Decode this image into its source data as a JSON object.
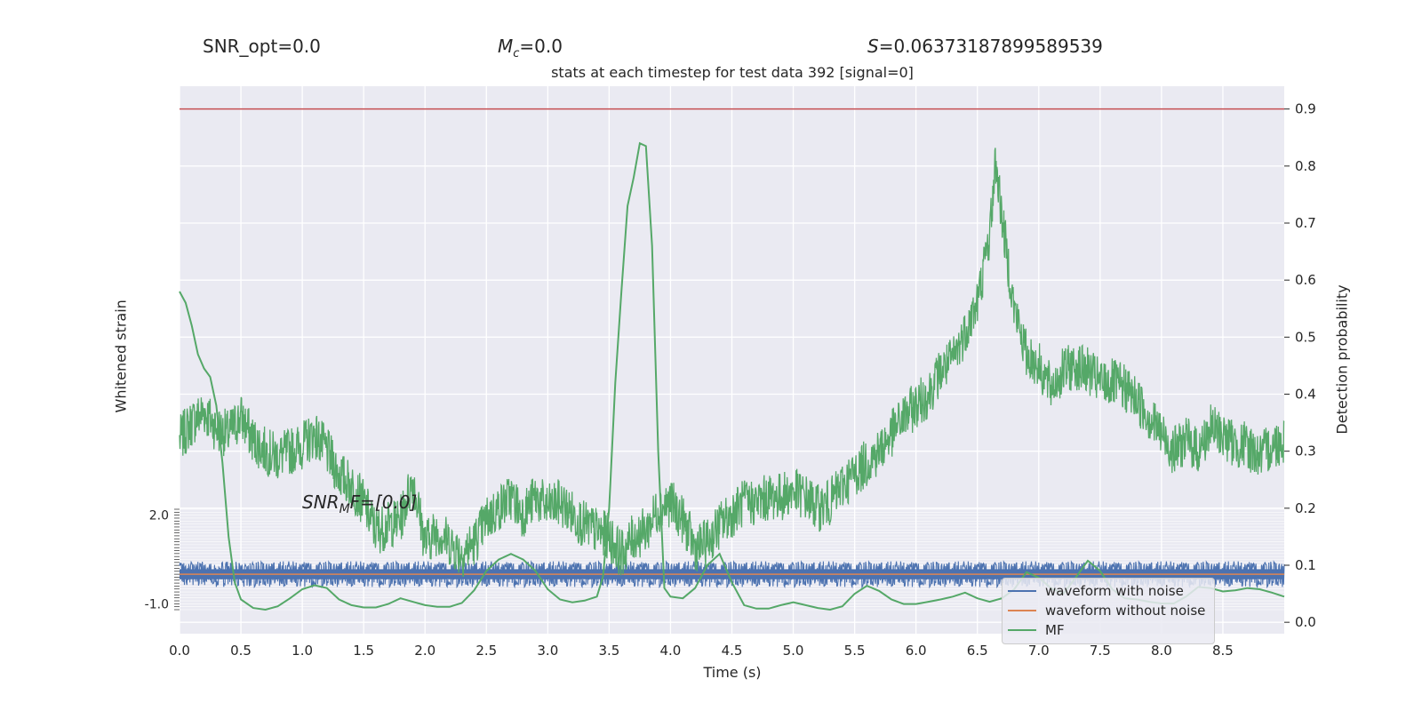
{
  "header": {
    "snr_opt": "SNR_opt=0.0",
    "mc_symbol": "M",
    "mc_sub": "c",
    "mc_value": "=0.0",
    "s_symbol": "S",
    "s_value": "=0.06373187899589539",
    "subtitle": "stats at each timestep for test data 392 [signal=0]"
  },
  "snr_mf": {
    "prefix": "SNR",
    "sub": "M",
    "suffix": "F=[0.0]"
  },
  "legend": [
    {
      "label": "waveform with noise",
      "color": "#4c72b0"
    },
    {
      "label": "waveform without noise",
      "color": "#dd8452"
    },
    {
      "label": "MF",
      "color": "#55a868"
    }
  ],
  "chart_data": [
    {
      "type": "line",
      "title": "stats at each timestep for test data 392 [signal=0]",
      "xlabel": "Time (s)",
      "ylabel": "Detection probability",
      "xlim": [
        0.0,
        9.0
      ],
      "ylim": [
        -0.02,
        0.94
      ],
      "x_ticks": [
        "0.0",
        "0.5",
        "1.0",
        "1.5",
        "2.0",
        "2.5",
        "3.0",
        "3.5",
        "4.0",
        "4.5",
        "5.0",
        "5.5",
        "6.0",
        "6.5",
        "7.0",
        "7.5",
        "8.0",
        "8.5"
      ],
      "y_ticks": [
        "0.0",
        "0.1",
        "0.2",
        "0.3",
        "0.4",
        "0.5",
        "0.6",
        "0.7",
        "0.8",
        "0.9"
      ],
      "grid": true,
      "threshold": {
        "y": 0.9,
        "color": "#c44e52"
      },
      "series": [
        {
          "name": "MF",
          "color": "#55a868",
          "smooth": [
            [
              0.0,
              0.58
            ],
            [
              0.05,
              0.56
            ],
            [
              0.1,
              0.52
            ],
            [
              0.15,
              0.47
            ],
            [
              0.2,
              0.445
            ],
            [
              0.25,
              0.43
            ],
            [
              0.3,
              0.38
            ],
            [
              0.35,
              0.28
            ],
            [
              0.4,
              0.15
            ],
            [
              0.45,
              0.07
            ],
            [
              0.5,
              0.04
            ],
            [
              0.6,
              0.025
            ],
            [
              0.7,
              0.022
            ],
            [
              0.8,
              0.028
            ],
            [
              0.9,
              0.042
            ],
            [
              1.0,
              0.058
            ],
            [
              1.1,
              0.065
            ],
            [
              1.2,
              0.06
            ],
            [
              1.3,
              0.04
            ],
            [
              1.4,
              0.03
            ],
            [
              1.5,
              0.026
            ],
            [
              1.6,
              0.026
            ],
            [
              1.7,
              0.032
            ],
            [
              1.8,
              0.042
            ],
            [
              1.9,
              0.036
            ],
            [
              2.0,
              0.03
            ],
            [
              2.1,
              0.027
            ],
            [
              2.2,
              0.027
            ],
            [
              2.3,
              0.034
            ],
            [
              2.4,
              0.056
            ],
            [
              2.5,
              0.09
            ],
            [
              2.6,
              0.11
            ],
            [
              2.7,
              0.12
            ],
            [
              2.8,
              0.11
            ],
            [
              2.9,
              0.09
            ],
            [
              3.0,
              0.058
            ],
            [
              3.1,
              0.04
            ],
            [
              3.2,
              0.035
            ],
            [
              3.3,
              0.038
            ],
            [
              3.4,
              0.045
            ],
            [
              3.45,
              0.08
            ],
            [
              3.5,
              0.2
            ],
            [
              3.55,
              0.42
            ],
            [
              3.6,
              0.58
            ],
            [
              3.65,
              0.73
            ],
            [
              3.7,
              0.78
            ],
            [
              3.75,
              0.84
            ],
            [
              3.8,
              0.835
            ],
            [
              3.85,
              0.66
            ],
            [
              3.9,
              0.3
            ],
            [
              3.95,
              0.06
            ],
            [
              4.0,
              0.045
            ],
            [
              4.1,
              0.042
            ],
            [
              4.2,
              0.06
            ],
            [
              4.3,
              0.1
            ],
            [
              4.4,
              0.12
            ],
            [
              4.5,
              0.07
            ],
            [
              4.6,
              0.03
            ],
            [
              4.7,
              0.024
            ],
            [
              4.8,
              0.024
            ],
            [
              4.9,
              0.03
            ],
            [
              5.0,
              0.035
            ],
            [
              5.1,
              0.03
            ],
            [
              5.2,
              0.025
            ],
            [
              5.3,
              0.022
            ],
            [
              5.4,
              0.028
            ],
            [
              5.5,
              0.05
            ],
            [
              5.6,
              0.064
            ],
            [
              5.7,
              0.055
            ],
            [
              5.8,
              0.04
            ],
            [
              5.9,
              0.032
            ],
            [
              6.0,
              0.032
            ],
            [
              6.1,
              0.036
            ],
            [
              6.2,
              0.04
            ],
            [
              6.3,
              0.045
            ],
            [
              6.4,
              0.052
            ],
            [
              6.5,
              0.042
            ],
            [
              6.6,
              0.036
            ],
            [
              6.7,
              0.042
            ],
            [
              6.8,
              0.058
            ],
            [
              6.9,
              0.088
            ],
            [
              7.0,
              0.078
            ],
            [
              7.1,
              0.06
            ],
            [
              7.2,
              0.05
            ],
            [
              7.3,
              0.078
            ],
            [
              7.4,
              0.108
            ],
            [
              7.5,
              0.09
            ],
            [
              7.6,
              0.058
            ],
            [
              7.7,
              0.042
            ],
            [
              7.8,
              0.04
            ],
            [
              7.9,
              0.036
            ],
            [
              8.0,
              0.033
            ],
            [
              8.1,
              0.033
            ],
            [
              8.2,
              0.045
            ],
            [
              8.3,
              0.062
            ],
            [
              8.4,
              0.06
            ],
            [
              8.5,
              0.054
            ],
            [
              8.6,
              0.056
            ],
            [
              8.7,
              0.06
            ],
            [
              8.8,
              0.058
            ],
            [
              8.9,
              0.052
            ],
            [
              9.0,
              0.045
            ]
          ],
          "noisy_envelope": [
            [
              0.0,
              0.32
            ],
            [
              0.1,
              0.35
            ],
            [
              0.2,
              0.37
            ],
            [
              0.3,
              0.34
            ],
            [
              0.4,
              0.33
            ],
            [
              0.5,
              0.36
            ],
            [
              0.6,
              0.32
            ],
            [
              0.7,
              0.3
            ],
            [
              0.8,
              0.29
            ],
            [
              0.9,
              0.3
            ],
            [
              1.0,
              0.31
            ],
            [
              1.1,
              0.33
            ],
            [
              1.2,
              0.3
            ],
            [
              1.3,
              0.26
            ],
            [
              1.4,
              0.24
            ],
            [
              1.5,
              0.21
            ],
            [
              1.6,
              0.16
            ],
            [
              1.7,
              0.17
            ],
            [
              1.8,
              0.18
            ],
            [
              1.9,
              0.25
            ],
            [
              2.0,
              0.14
            ],
            [
              2.1,
              0.16
            ],
            [
              2.2,
              0.14
            ],
            [
              2.3,
              0.12
            ],
            [
              2.4,
              0.14
            ],
            [
              2.5,
              0.18
            ],
            [
              2.6,
              0.2
            ],
            [
              2.7,
              0.22
            ],
            [
              2.8,
              0.19
            ],
            [
              2.9,
              0.22
            ],
            [
              3.0,
              0.2
            ],
            [
              3.1,
              0.21
            ],
            [
              3.2,
              0.19
            ],
            [
              3.3,
              0.17
            ],
            [
              3.4,
              0.16
            ],
            [
              3.5,
              0.15
            ],
            [
              3.6,
              0.12
            ],
            [
              3.7,
              0.15
            ],
            [
              3.8,
              0.16
            ],
            [
              3.9,
              0.2
            ],
            [
              4.0,
              0.21
            ],
            [
              4.1,
              0.18
            ],
            [
              4.2,
              0.13
            ],
            [
              4.3,
              0.14
            ],
            [
              4.4,
              0.17
            ],
            [
              4.5,
              0.19
            ],
            [
              4.6,
              0.21
            ],
            [
              4.7,
              0.21
            ],
            [
              4.8,
              0.22
            ],
            [
              4.9,
              0.22
            ],
            [
              5.0,
              0.23
            ],
            [
              5.1,
              0.22
            ],
            [
              5.2,
              0.2
            ],
            [
              5.3,
              0.21
            ],
            [
              5.4,
              0.24
            ],
            [
              5.5,
              0.26
            ],
            [
              5.6,
              0.28
            ],
            [
              5.7,
              0.3
            ],
            [
              5.8,
              0.33
            ],
            [
              5.9,
              0.36
            ],
            [
              6.0,
              0.38
            ],
            [
              6.1,
              0.4
            ],
            [
              6.2,
              0.44
            ],
            [
              6.3,
              0.46
            ],
            [
              6.4,
              0.51
            ],
            [
              6.5,
              0.56
            ],
            [
              6.6,
              0.68
            ],
            [
              6.65,
              0.81
            ],
            [
              6.7,
              0.71
            ],
            [
              6.8,
              0.55
            ],
            [
              6.9,
              0.47
            ],
            [
              7.0,
              0.45
            ],
            [
              7.1,
              0.41
            ],
            [
              7.2,
              0.44
            ],
            [
              7.3,
              0.45
            ],
            [
              7.4,
              0.44
            ],
            [
              7.5,
              0.42
            ],
            [
              7.6,
              0.42
            ],
            [
              7.7,
              0.41
            ],
            [
              7.8,
              0.39
            ],
            [
              7.9,
              0.36
            ],
            [
              8.0,
              0.33
            ],
            [
              8.1,
              0.3
            ],
            [
              8.2,
              0.32
            ],
            [
              8.3,
              0.3
            ],
            [
              8.4,
              0.34
            ],
            [
              8.5,
              0.33
            ],
            [
              8.6,
              0.31
            ],
            [
              8.7,
              0.31
            ],
            [
              8.8,
              0.29
            ],
            [
              8.9,
              0.31
            ],
            [
              9.0,
              0.32
            ]
          ]
        }
      ]
    },
    {
      "type": "line",
      "ylabel": "Whitened strain",
      "xlim": [
        0.0,
        9.0
      ],
      "ylim": [
        -1.2,
        2.2
      ],
      "y_ticks": [
        "-1.0",
        "2.0"
      ],
      "grid": true,
      "series": [
        {
          "name": "waveform with noise",
          "color": "#4c72b0",
          "center": 0.0,
          "amplitude": 0.3
        },
        {
          "name": "waveform without noise",
          "color": "#dd8452",
          "value": 0.0
        }
      ]
    }
  ]
}
